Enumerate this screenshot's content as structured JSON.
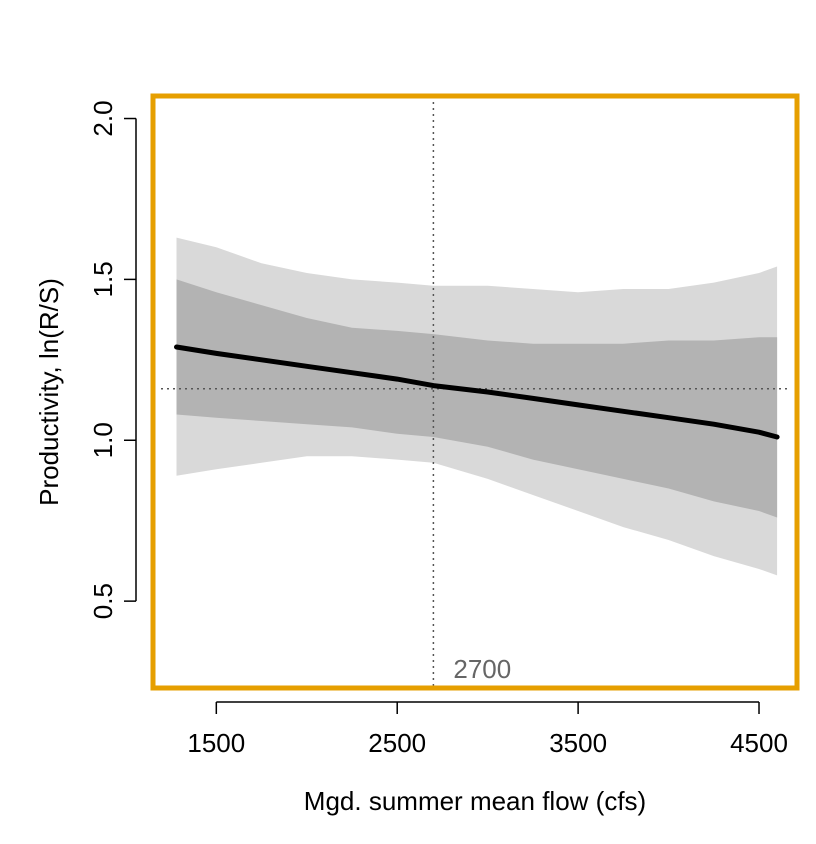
{
  "chart_data": {
    "type": "line",
    "title": "",
    "xlabel": "Mgd. summer mean flow (cfs)",
    "ylabel": "Productivity, ln(R/S)",
    "xlim": [
      1150,
      4710
    ],
    "ylim": [
      0.23,
      2.07
    ],
    "xticks": [
      1500,
      2500,
      3500,
      4500
    ],
    "yticks": [
      0.5,
      1.0,
      1.5,
      2.0
    ],
    "ytick_labels": [
      "0.5",
      "1.0",
      "1.5",
      "2.0"
    ],
    "grid": false,
    "series": [
      {
        "x": [
          1280,
          1500,
          1750,
          2000,
          2250,
          2500,
          2700,
          3000,
          3250,
          3500,
          3750,
          4000,
          4250,
          4500,
          4600
        ],
        "y": [
          1.29,
          1.27,
          1.25,
          1.23,
          1.21,
          1.19,
          1.17,
          1.15,
          1.13,
          1.11,
          1.09,
          1.07,
          1.05,
          1.025,
          1.01
        ]
      }
    ],
    "bands": [
      {
        "level": "outer",
        "x": [
          1280,
          1500,
          1750,
          2000,
          2250,
          2500,
          2700,
          3000,
          3250,
          3500,
          3750,
          4000,
          4250,
          4500,
          4600
        ],
        "lower": [
          0.89,
          0.91,
          0.93,
          0.95,
          0.95,
          0.94,
          0.93,
          0.88,
          0.83,
          0.78,
          0.73,
          0.69,
          0.64,
          0.6,
          0.58
        ],
        "upper": [
          1.63,
          1.6,
          1.55,
          1.52,
          1.5,
          1.49,
          1.48,
          1.48,
          1.47,
          1.46,
          1.47,
          1.47,
          1.49,
          1.52,
          1.54
        ]
      },
      {
        "level": "inner",
        "x": [
          1280,
          1500,
          1750,
          2000,
          2250,
          2500,
          2700,
          3000,
          3250,
          3500,
          3750,
          4000,
          4250,
          4500,
          4600
        ],
        "lower": [
          1.08,
          1.07,
          1.06,
          1.05,
          1.04,
          1.02,
          1.01,
          0.98,
          0.94,
          0.91,
          0.88,
          0.85,
          0.81,
          0.78,
          0.76
        ],
        "upper": [
          1.5,
          1.46,
          1.42,
          1.38,
          1.35,
          1.34,
          1.33,
          1.31,
          1.3,
          1.3,
          1.3,
          1.31,
          1.31,
          1.32,
          1.32
        ]
      }
    ],
    "reference_lines": {
      "vertical_x": 2700,
      "horizontal_y": 1.16,
      "vertical_label": "2700"
    },
    "colors": {
      "frame": "#E69F00",
      "outer_band": "#D9D9D9",
      "inner_band": "#B3B3B3",
      "line": "#000000",
      "reference": "#555555",
      "reference_label": "#666666"
    }
  }
}
